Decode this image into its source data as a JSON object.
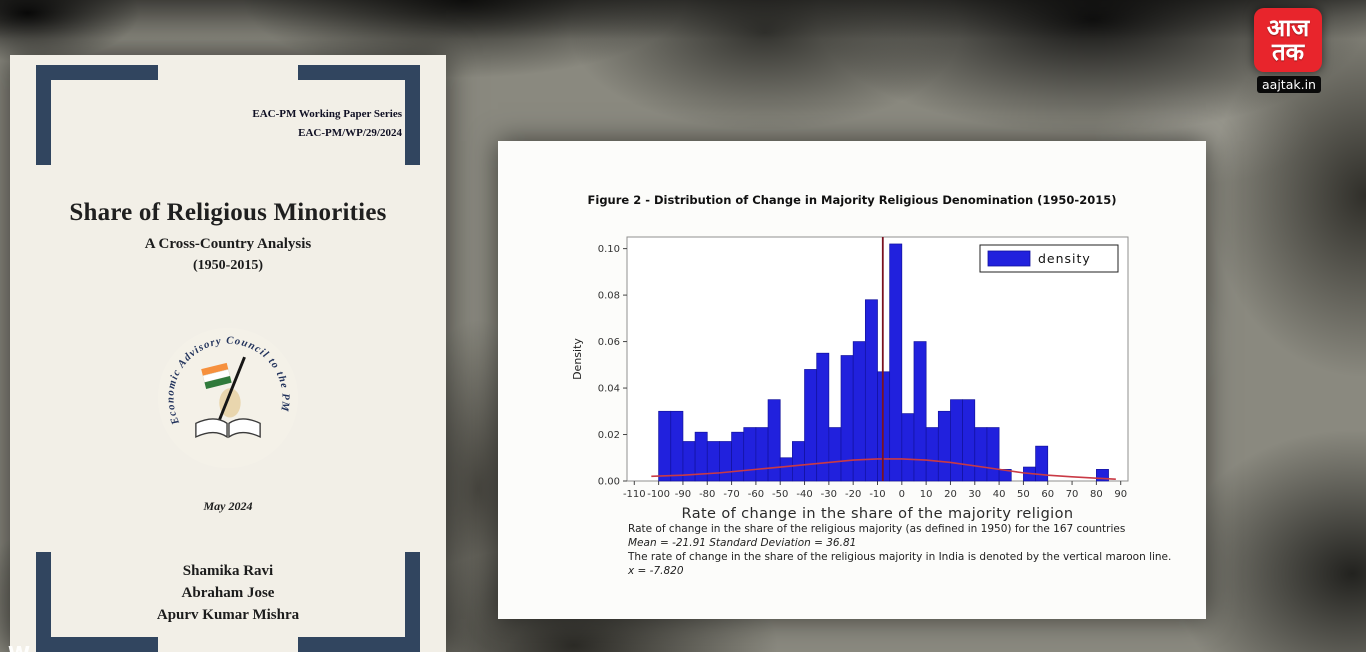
{
  "channel": {
    "logo_line1": "आज",
    "logo_line2": "तक",
    "url": "aajtak.in",
    "brand_color": "#e8252c"
  },
  "watermark": "W",
  "paper_cover": {
    "series_line1": "EAC-PM Working Paper Series",
    "series_line2": "EAC-PM/WP/29/2024",
    "title": "Share of Religious Minorities",
    "subtitle": "A Cross-Country Analysis",
    "years": "(1950-2015)",
    "logo_circular_text": "Economic Advisory Council to the PM",
    "date": "May 2024",
    "authors": [
      "Shamika Ravi",
      "Abraham Jose",
      "Apurv Kumar Mishra"
    ],
    "accent_color": "#31455f"
  },
  "figure_page": {
    "captions": [
      "Rate of change in the share of the religious majority (as defined in 1950) for the 167 countries",
      "Mean = -21.91   Standard Deviation =  36.81",
      "The rate of change in the share of the religious majority in India is denoted by the vertical maroon line.",
      "x = -7.820"
    ]
  },
  "chart_data": {
    "type": "bar",
    "title": "Figure 2 - Distribution of Change in Majority Religious Denomination (1950-2015)",
    "xlabel": "Rate of change in the share of the majority religion",
    "ylabel": "Density",
    "xlim": [
      -113,
      93
    ],
    "ylim": [
      0,
      0.105
    ],
    "x_ticks": [
      -110,
      -100,
      -90,
      -80,
      -70,
      -60,
      -50,
      -40,
      -30,
      -20,
      -10,
      0,
      10,
      20,
      30,
      40,
      50,
      60,
      70,
      80,
      90
    ],
    "y_ticks": [
      0.0,
      0.02,
      0.04,
      0.06,
      0.08,
      0.1
    ],
    "bin_width": 5,
    "legend": [
      "density"
    ],
    "bar_color": "#2121dd",
    "bar_edge_color": "#12129e",
    "vline_x": -7.82,
    "vline_color": "#7a1220",
    "curve_color": "#c93a45",
    "grid": false,
    "legend_position": "top-right",
    "bars": [
      [
        -100,
        0.03
      ],
      [
        -95,
        0.03
      ],
      [
        -90,
        0.017
      ],
      [
        -85,
        0.021
      ],
      [
        -80,
        0.017
      ],
      [
        -75,
        0.017
      ],
      [
        -70,
        0.021
      ],
      [
        -65,
        0.023
      ],
      [
        -60,
        0.023
      ],
      [
        -55,
        0.035
      ],
      [
        -50,
        0.01
      ],
      [
        -45,
        0.017
      ],
      [
        -40,
        0.048
      ],
      [
        -35,
        0.055
      ],
      [
        -30,
        0.023
      ],
      [
        -25,
        0.054
      ],
      [
        -20,
        0.06
      ],
      [
        -15,
        0.078
      ],
      [
        -10,
        0.047
      ],
      [
        -5,
        0.102
      ],
      [
        0,
        0.029
      ],
      [
        5,
        0.06
      ],
      [
        10,
        0.023
      ],
      [
        15,
        0.03
      ],
      [
        20,
        0.035
      ],
      [
        25,
        0.035
      ],
      [
        30,
        0.023
      ],
      [
        35,
        0.023
      ],
      [
        40,
        0.005
      ],
      [
        50,
        0.006
      ],
      [
        55,
        0.015
      ],
      [
        80,
        0.005
      ]
    ],
    "density_curve": [
      [
        -103,
        0.002
      ],
      [
        -90,
        0.0025
      ],
      [
        -75,
        0.0035
      ],
      [
        -60,
        0.005
      ],
      [
        -45,
        0.0065
      ],
      [
        -30,
        0.008
      ],
      [
        -20,
        0.009
      ],
      [
        -10,
        0.0095
      ],
      [
        0,
        0.0095
      ],
      [
        10,
        0.009
      ],
      [
        20,
        0.008
      ],
      [
        30,
        0.0065
      ],
      [
        40,
        0.005
      ],
      [
        50,
        0.0035
      ],
      [
        60,
        0.0025
      ],
      [
        70,
        0.0018
      ],
      [
        80,
        0.0012
      ],
      [
        88,
        0.0008
      ]
    ]
  }
}
